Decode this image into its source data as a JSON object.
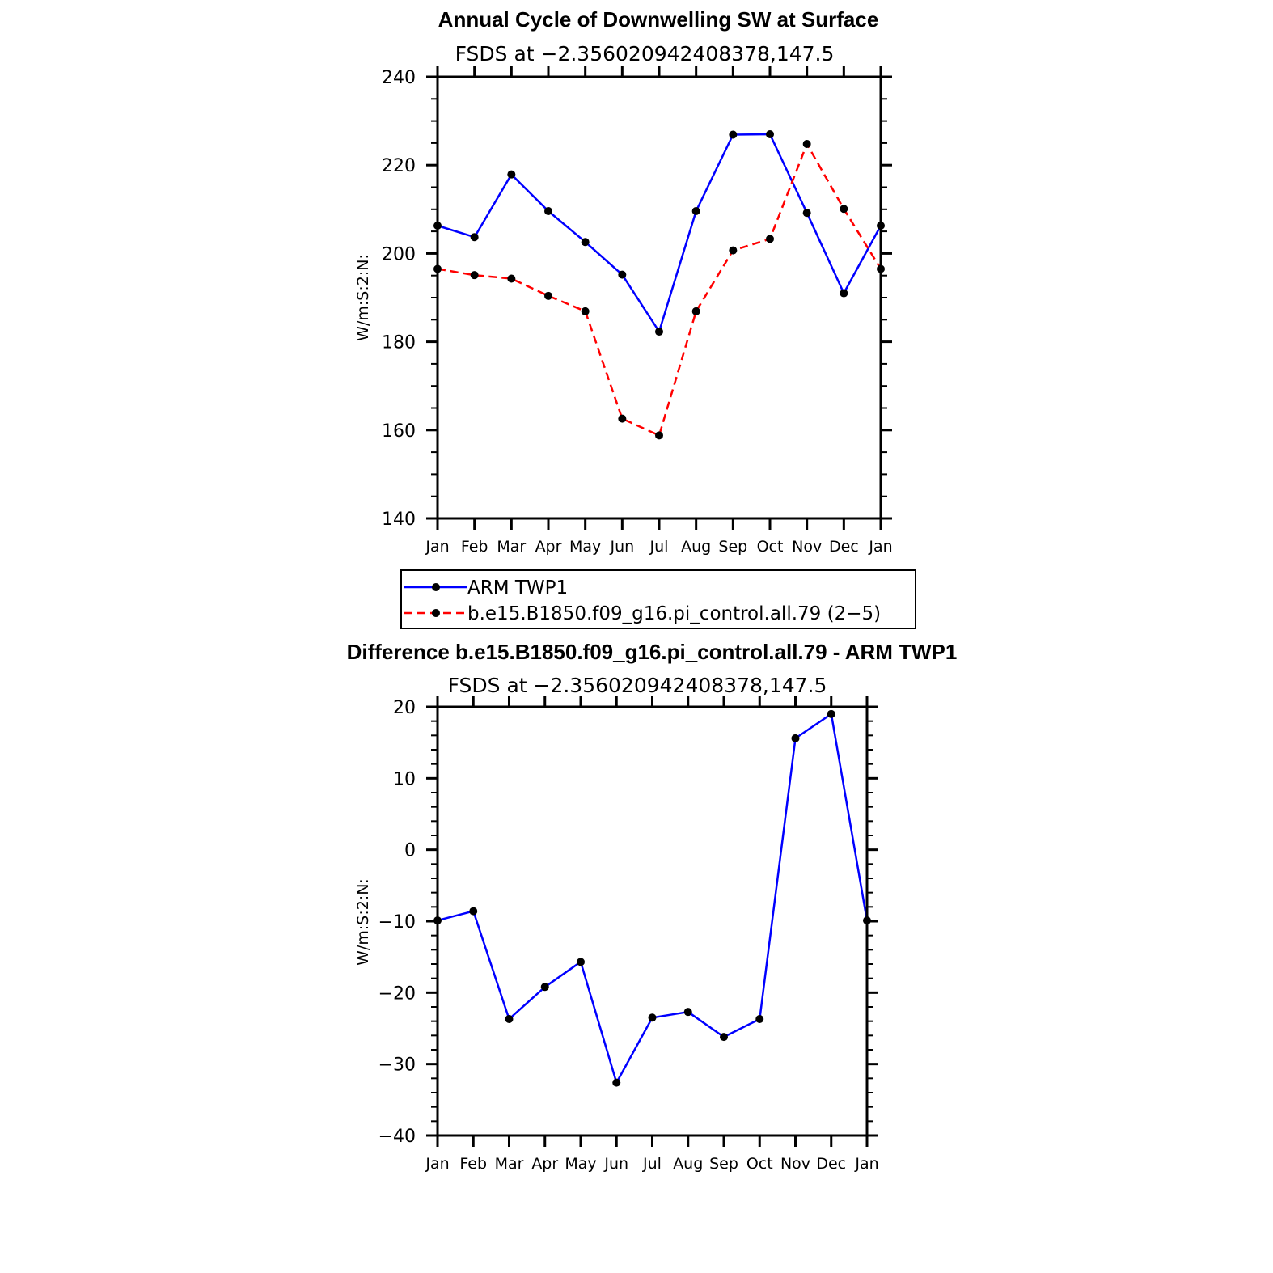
{
  "chart_data": [
    {
      "type": "line",
      "title": "Annual Cycle of Downwelling SW at Surface",
      "subtitle": "FSDS at −2.356020942408378,147.5",
      "ylabel": "W/m:S:2:N:",
      "xlabel": "",
      "ylim": [
        140,
        240
      ],
      "yticks": [
        140,
        160,
        180,
        200,
        220,
        240
      ],
      "categories": [
        "Jan",
        "Feb",
        "Mar",
        "Apr",
        "May",
        "Jun",
        "Jul",
        "Aug",
        "Sep",
        "Oct",
        "Nov",
        "Dec",
        "Jan"
      ],
      "series": [
        {
          "name": "ARM  TWP1",
          "color": "#0000ff",
          "dash": "solid",
          "marker": "dot",
          "values": [
            206.3,
            203.7,
            217.9,
            209.6,
            202.6,
            195.2,
            182.3,
            209.6,
            226.9,
            227.0,
            209.2,
            191.0,
            206.3
          ]
        },
        {
          "name": "b.e15.B1850.f09_g16.pi_control.all.79 (2−5)",
          "color": "#ff0000",
          "dash": "dashed",
          "marker": "dot",
          "values": [
            196.5,
            195.1,
            194.3,
            190.4,
            186.9,
            162.6,
            158.8,
            186.9,
            200.7,
            203.3,
            224.8,
            210.1,
            196.5
          ]
        }
      ],
      "legend": "below",
      "grid": false
    },
    {
      "type": "line",
      "title": "Difference b.e15.B1850.f09_g16.pi_control.all.79 - ARM TWP1",
      "subtitle": "FSDS at −2.356020942408378,147.5",
      "ylabel": "W/m:S:2:N:",
      "xlabel": "",
      "ylim": [
        -40,
        20
      ],
      "yticks": [
        -40,
        -30,
        -20,
        -10,
        0,
        10,
        20
      ],
      "ytick_labels": [
        "−40",
        "−30",
        "−20",
        "−10",
        "0",
        "10",
        "20"
      ],
      "categories": [
        "Jan",
        "Feb",
        "Mar",
        "Apr",
        "May",
        "Jun",
        "Jul",
        "Aug",
        "Sep",
        "Oct",
        "Nov",
        "Dec",
        "Jan"
      ],
      "series": [
        {
          "color": "#0000ff",
          "dash": "solid",
          "marker": "dot",
          "values": [
            -9.9,
            -8.6,
            -23.7,
            -19.2,
            -15.7,
            -32.6,
            -23.5,
            -22.7,
            -26.2,
            -23.7,
            15.6,
            19.0,
            -9.9
          ]
        }
      ],
      "grid": false
    }
  ]
}
